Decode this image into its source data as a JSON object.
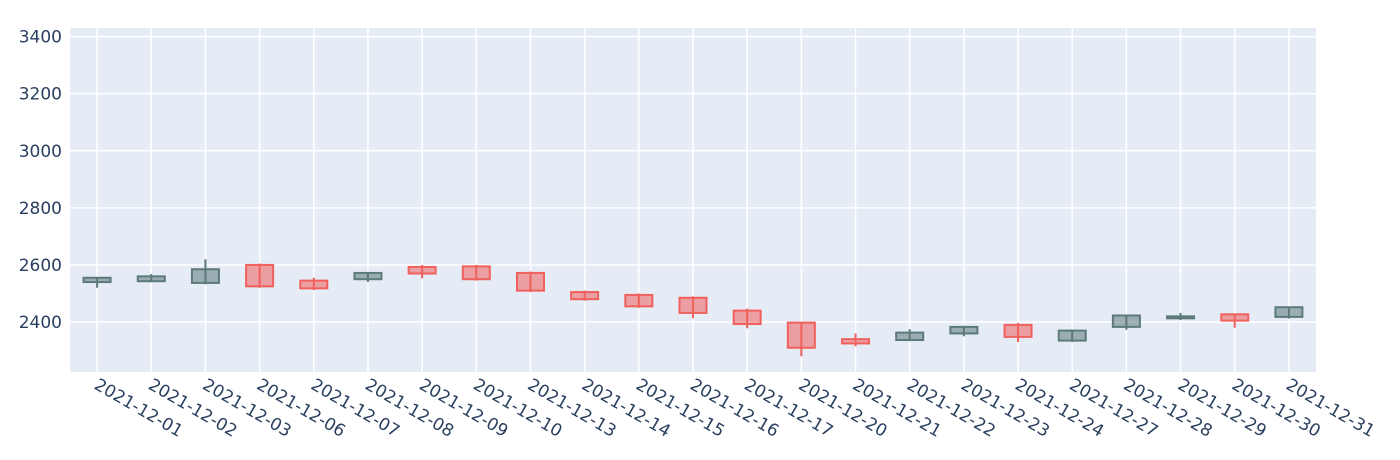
{
  "chart_data": {
    "type": "candlestick",
    "title": "",
    "xlabel": "",
    "ylabel": "",
    "ylim": [
      2225,
      3430
    ],
    "yticks": [
      2400,
      2600,
      2800,
      3000,
      3200,
      3400
    ],
    "grid": true,
    "colors": {
      "plot_bg": "#e5ecf6",
      "grid": "#ffffff",
      "increasing": "#5d7a7a",
      "decreasing": "#f0605d",
      "tick_text": "#2a3f5f"
    },
    "categories": [
      "2021-12-01",
      "2021-12-02",
      "2021-12-03",
      "2021-12-06",
      "2021-12-07",
      "2021-12-08",
      "2021-12-09",
      "2021-12-10",
      "2021-12-13",
      "2021-12-14",
      "2021-12-15",
      "2021-12-16",
      "2021-12-17",
      "2021-12-20",
      "2021-12-21",
      "2021-12-22",
      "2021-12-23",
      "2021-12-24",
      "2021-12-27",
      "2021-12-28",
      "2021-12-29",
      "2021-12-30",
      "2021-12-31"
    ],
    "open": [
      2540,
      2543,
      2537,
      2600,
      2545,
      2550,
      2593,
      2595,
      2572,
      2505,
      2495,
      2485,
      2440,
      2398,
      2340,
      2337,
      2360,
      2390,
      2335,
      2383,
      2415,
      2427,
      2418
    ],
    "high": [
      2557,
      2568,
      2620,
      2605,
      2555,
      2575,
      2600,
      2600,
      2577,
      2510,
      2500,
      2490,
      2447,
      2400,
      2360,
      2375,
      2387,
      2397,
      2373,
      2425,
      2432,
      2430,
      2450
    ],
    "low": [
      2520,
      2540,
      2532,
      2520,
      2512,
      2540,
      2553,
      2545,
      2505,
      2475,
      2450,
      2413,
      2378,
      2280,
      2315,
      2333,
      2350,
      2330,
      2330,
      2373,
      2407,
      2380,
      2412
    ],
    "close": [
      2555,
      2560,
      2585,
      2525,
      2518,
      2572,
      2570,
      2550,
      2510,
      2480,
      2455,
      2432,
      2393,
      2310,
      2325,
      2363,
      2383,
      2348,
      2370,
      2423,
      2420,
      2405,
      2452
    ]
  }
}
